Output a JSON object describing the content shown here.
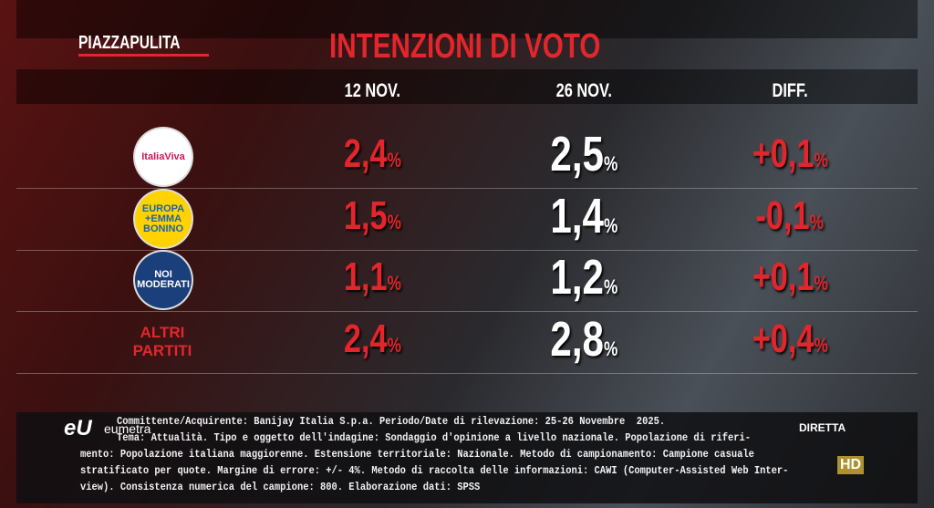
{
  "header": {
    "brand": "PIAZZAPULITA",
    "title": "INTENZIONI DI VOTO"
  },
  "table": {
    "columns": [
      "12 NOV.",
      "26 NOV.",
      "DIFF."
    ],
    "rows": [
      {
        "label": [
          "ItaliaViva"
        ],
        "cells": [
          {
            "value": "2,4",
            "unit": "%"
          },
          {
            "value": "2,5",
            "unit": "%"
          },
          {
            "value": "+0,1",
            "unit": "%"
          }
        ]
      },
      {
        "label": [
          "EUROPA",
          "+EMMA",
          "BONINO"
        ],
        "cells": [
          {
            "value": "1,5",
            "unit": "%"
          },
          {
            "value": "1,4",
            "unit": "%"
          },
          {
            "value": "-0,1",
            "unit": "%"
          }
        ]
      },
      {
        "label": [
          "NOI",
          "MODERATI"
        ],
        "cells": [
          {
            "value": "1,1",
            "unit": "%"
          },
          {
            "value": "1,2",
            "unit": "%"
          },
          {
            "value": "+0,1",
            "unit": "%"
          }
        ]
      },
      {
        "label": [
          "ALTRI",
          "PARTITI"
        ],
        "cells": [
          {
            "value": "2,4",
            "unit": "%"
          },
          {
            "value": "2,8",
            "unit": "%"
          },
          {
            "value": "+0,4",
            "unit": "%"
          }
        ]
      }
    ]
  },
  "footer": {
    "source": "eumetra",
    "lines": [
      "Committente/Acquirente: Banijay Italia S.p.a. Periodo/Date di rilevazione: 25-26 Novembre  2025.",
      "Tema: Attualità. Tipo e oggetto dell'indagine: Sondaggio d'opinione a livello nazionale. Popolazione di riferi-",
      "mento: Popolazione italiana maggiorenne. Estensione territoriale: Nazionale. Metodo di campionamento: Campione casuale",
      "stratificato per quote. Margine di errore: +/- 4%. Metodo di raccolta delle informazioni: CAWI (Computer-Assisted Web Inter-",
      "view). Consistenza numerica del campione: 800. Elaborazione dati: SPSS"
    ]
  },
  "watermark": {
    "live": "DIRETTA",
    "hd": "HD"
  }
}
